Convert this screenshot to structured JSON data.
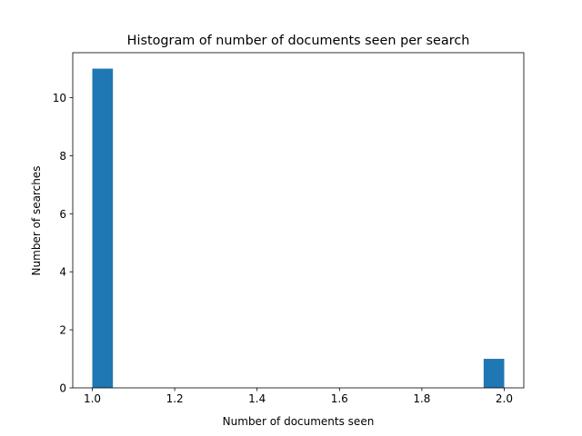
{
  "chart_data": {
    "type": "bar",
    "title": "Histogram of number of documents seen per search",
    "xlabel": "Number of documents seen",
    "ylabel": "Number of searches",
    "bin_width": 0.05,
    "bars": [
      {
        "x": 1.0,
        "value": 11
      },
      {
        "x": 1.95,
        "value": 1
      }
    ],
    "xlim": [
      0.9525,
      2.0475
    ],
    "ylim": [
      0,
      11.55
    ],
    "x_ticks": [
      1.0,
      1.2,
      1.4,
      1.6,
      1.8,
      2.0
    ],
    "x_tick_labels": [
      "1.0",
      "1.2",
      "1.4",
      "1.6",
      "1.8",
      "2.0"
    ],
    "y_ticks": [
      0,
      2,
      4,
      6,
      8,
      10
    ],
    "y_tick_labels": [
      "0",
      "2",
      "4",
      "6",
      "8",
      "10"
    ],
    "bar_color": "#1f77b4",
    "grid": false,
    "legend": "none"
  }
}
